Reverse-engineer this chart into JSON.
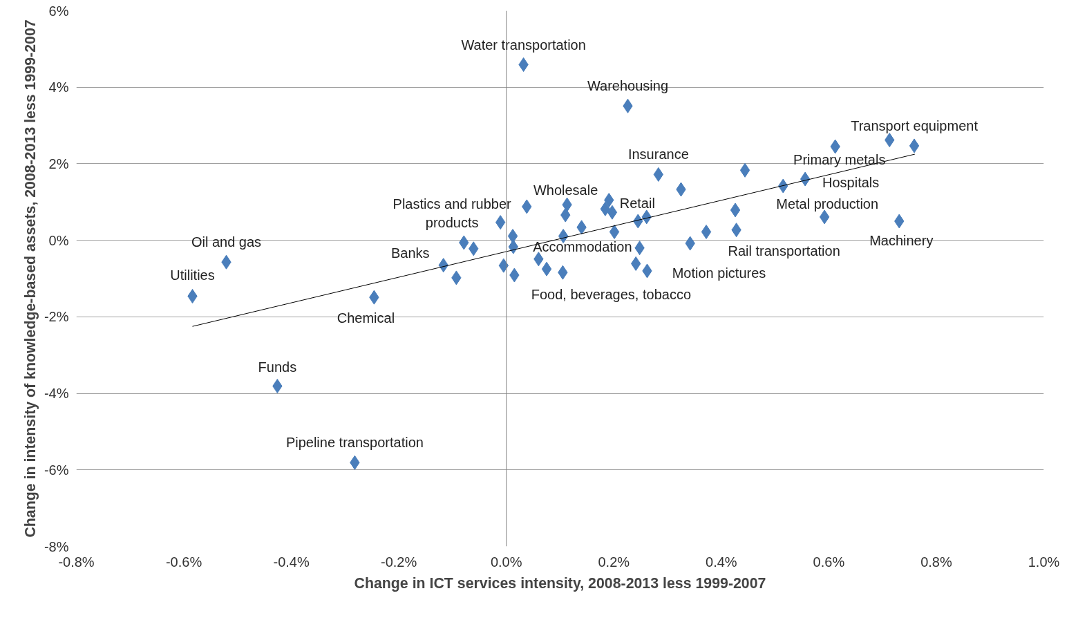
{
  "chart_data": {
    "type": "scatter",
    "xlabel": "Change in ICT services intensity, 2008-2013 less 1999-2007",
    "ylabel": "Change in intensity of knowledge-based assets, 2008-2013 less 1999-2007",
    "xlim": [
      -0.8,
      1.0
    ],
    "ylim": [
      -8,
      6
    ],
    "xticks": [
      {
        "value": -0.8,
        "label": "-0.8%"
      },
      {
        "value": -0.6,
        "label": "-0.6%"
      },
      {
        "value": -0.4,
        "label": "-0.4%"
      },
      {
        "value": -0.2,
        "label": "-0.2%"
      },
      {
        "value": 0.0,
        "label": "0.0%"
      },
      {
        "value": 0.2,
        "label": "0.2%"
      },
      {
        "value": 0.4,
        "label": "0.4%"
      },
      {
        "value": 0.6,
        "label": "0.6%"
      },
      {
        "value": 0.8,
        "label": "0.8%"
      },
      {
        "value": 1.0,
        "label": "1.0%"
      }
    ],
    "yticks": [
      {
        "value": -8,
        "label": "-8%"
      },
      {
        "value": -6,
        "label": "-6%"
      },
      {
        "value": -4,
        "label": "-4%"
      },
      {
        "value": -2,
        "label": "-2%"
      },
      {
        "value": 0,
        "label": "0%"
      },
      {
        "value": 2,
        "label": "2%"
      },
      {
        "value": 4,
        "label": "4%"
      },
      {
        "value": 6,
        "label": "6%"
      }
    ],
    "grid": "y",
    "marker": "diamond",
    "ref_lines": [
      {
        "axis": "x",
        "value": 0,
        "color": "#808080"
      }
    ],
    "series": [
      {
        "type": "scatter",
        "color": "#4a7ebb",
        "x": [
          0.032,
          0.226,
          0.713,
          0.759,
          0.612,
          0.283,
          0.444,
          0.325,
          0.515,
          0.556,
          0.426,
          0.592,
          0.731,
          0.191,
          0.184,
          0.197,
          0.113,
          0.11,
          0.038,
          -0.011,
          0.012,
          0.013,
          0.106,
          0.14,
          0.201,
          0.245,
          0.261,
          0.342,
          0.372,
          0.428,
          0.248,
          0.241,
          0.262,
          0.06,
          0.075,
          0.105,
          -0.005,
          0.015,
          -0.079,
          -0.061,
          -0.117,
          -0.093,
          -0.246,
          -0.521,
          -0.584,
          -0.426,
          -0.282
        ],
        "values": [
          4.59,
          3.51,
          2.62,
          2.47,
          2.45,
          1.72,
          1.83,
          1.33,
          1.42,
          1.6,
          0.79,
          0.61,
          0.5,
          1.05,
          0.82,
          0.73,
          0.93,
          0.66,
          0.88,
          0.47,
          0.11,
          -0.17,
          0.11,
          0.34,
          0.22,
          0.5,
          0.61,
          -0.08,
          0.22,
          0.27,
          -0.2,
          -0.61,
          -0.8,
          -0.49,
          -0.75,
          -0.84,
          -0.66,
          -0.91,
          -0.06,
          -0.22,
          -0.65,
          -0.98,
          -1.49,
          -0.57,
          -1.46,
          -3.81,
          -5.81
        ]
      },
      {
        "type": "line",
        "color": "#000000",
        "marker": "none",
        "x": [
          -0.584,
          0.76
        ],
        "values": [
          -2.25,
          2.25
        ]
      }
    ],
    "annotations": [
      {
        "text": "Water transportation",
        "x": 0.032,
        "y": 4.59
      },
      {
        "text": "Warehousing",
        "x": 0.226,
        "y": 3.51
      },
      {
        "text": "Transport equipment",
        "x": 0.759,
        "y": 2.47
      },
      {
        "text": "Insurance",
        "x": 0.283,
        "y": 1.72
      },
      {
        "text": "Primary metals",
        "x": 0.612,
        "y": 2.45
      },
      {
        "text": "Hospitals",
        "x": 0.556,
        "y": 1.6
      },
      {
        "text": "Wholesale",
        "x": 0.113,
        "y": 0.93
      },
      {
        "text": "Retail",
        "x": 0.191,
        "y": 1.05
      },
      {
        "text": "Plastics and rubber\nproducts",
        "x": -0.011,
        "y": 0.47
      },
      {
        "text": "Metal production",
        "x": 0.592,
        "y": 0.61
      },
      {
        "text": "Oil and gas",
        "x": -0.521,
        "y": -0.57
      },
      {
        "text": "Machinery",
        "x": 0.731,
        "y": 0.5
      },
      {
        "text": "Accommodation",
        "x": 0.013,
        "y": -0.17
      },
      {
        "text": "Banks",
        "x": -0.117,
        "y": -0.65
      },
      {
        "text": "Rail transportation",
        "x": 0.428,
        "y": 0.27
      },
      {
        "text": "Utilities",
        "x": -0.584,
        "y": -1.46
      },
      {
        "text": "Motion pictures",
        "x": 0.262,
        "y": -0.8
      },
      {
        "text": "Food, beverages, tobacco",
        "x": 0.105,
        "y": -0.84
      },
      {
        "text": "Chemical",
        "x": -0.246,
        "y": -1.49
      },
      {
        "text": "Funds",
        "x": -0.426,
        "y": -3.81
      },
      {
        "text": "Pipeline transportation",
        "x": -0.282,
        "y": -5.81
      }
    ]
  }
}
